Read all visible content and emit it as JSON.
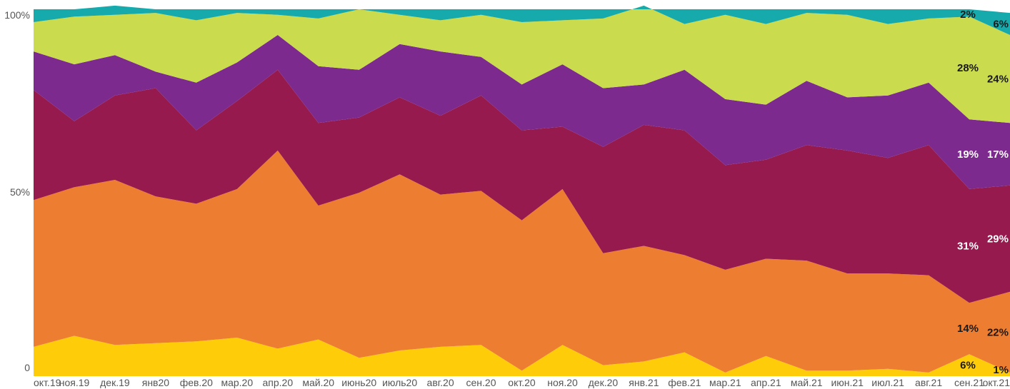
{
  "chart_data": {
    "type": "area",
    "stacked": true,
    "normalized": true,
    "x": [
      "окт.19",
      "ноя.19",
      "дек.19",
      "янв20",
      "фев.20",
      "мар.20",
      "апр.20",
      "май.20",
      "июнь20",
      "июль20",
      "авг.20",
      "сен.20",
      "окт.20",
      "ноя.20",
      "дек.20",
      "янв.21",
      "фев.21",
      "мар.21",
      "апр.21",
      "май.21",
      "июн.21",
      "июл.21",
      "авг.21",
      "сен.21",
      "окт.21"
    ],
    "y_ticks": [
      "0",
      "50%",
      "100%"
    ],
    "ylim": [
      0,
      100
    ],
    "grid": false,
    "legend": "none",
    "series": [
      {
        "color": "#FFCC0A",
        "values": [
          8,
          11,
          8.5,
          9,
          9.5,
          10.5,
          7.5,
          10,
          5,
          7,
          8,
          8.5,
          1.5,
          8.5,
          3,
          4,
          6.5,
          1,
          5.5,
          1.5,
          1.5,
          2,
          1,
          6,
          1
        ]
      },
      {
        "color": "#ED7D31",
        "values": [
          40,
          40.5,
          45,
          40,
          37.5,
          40.5,
          54,
          36.5,
          45,
          48,
          41.5,
          42,
          41,
          42.5,
          30.5,
          31.5,
          26.5,
          28,
          26.5,
          30,
          26.5,
          26,
          26.5,
          14,
          22
        ]
      },
      {
        "color": "#961A4D",
        "values": [
          30,
          18,
          23,
          29.5,
          20,
          24,
          22,
          22.5,
          20.5,
          21,
          21.5,
          26,
          24.5,
          17,
          29,
          33,
          34,
          28.5,
          27,
          31.5,
          33.5,
          31.5,
          35.5,
          31,
          29
        ]
      },
      {
        "color": "#7D2A8E",
        "values": [
          10.5,
          15.5,
          11,
          4.5,
          13,
          10.5,
          9.5,
          15.5,
          13,
          14.5,
          17.5,
          10.5,
          12.5,
          17,
          16,
          11,
          16.5,
          18,
          15,
          17.5,
          14.5,
          17,
          17,
          19,
          17
        ]
      },
      {
        "color": "#CADB4D",
        "values": [
          8,
          13,
          11,
          16,
          17,
          13.5,
          5.5,
          13,
          16.5,
          8,
          8.5,
          11.5,
          17,
          12,
          19,
          21.5,
          12.5,
          23,
          22,
          18.5,
          22.5,
          19.5,
          17.5,
          28,
          24
        ]
      },
      {
        "color": "#16AAAD",
        "values": [
          3.5,
          2,
          2.5,
          1,
          3,
          1,
          1.5,
          2.5,
          0,
          1.5,
          3,
          1.5,
          3.5,
          3,
          2.5,
          -1,
          4,
          1.5,
          4,
          1,
          1.5,
          4,
          2.5,
          2,
          6
        ]
      }
    ],
    "data_labels": [
      {
        "series": 0,
        "index": 23,
        "text": "6%",
        "color": "#1a1a1a"
      },
      {
        "series": 0,
        "index": 24,
        "text": "1%",
        "color": "#1a1a1a"
      },
      {
        "series": 1,
        "index": 23,
        "text": "14%",
        "color": "#1a1a1a"
      },
      {
        "series": 1,
        "index": 24,
        "text": "22%",
        "color": "#1a1a1a"
      },
      {
        "series": 2,
        "index": 23,
        "text": "31%",
        "color": "#ffffff"
      },
      {
        "series": 2,
        "index": 24,
        "text": "29%",
        "color": "#ffffff"
      },
      {
        "series": 3,
        "index": 23,
        "text": "19%",
        "color": "#ffffff"
      },
      {
        "series": 3,
        "index": 24,
        "text": "17%",
        "color": "#ffffff"
      },
      {
        "series": 4,
        "index": 23,
        "text": "28%",
        "color": "#1a1a1a"
      },
      {
        "series": 4,
        "index": 24,
        "text": "24%",
        "color": "#1a1a1a"
      },
      {
        "series": 5,
        "index": 23,
        "text": "2%",
        "color": "#1a1a1a"
      },
      {
        "series": 5,
        "index": 24,
        "text": "6%",
        "color": "#1a1a1a"
      }
    ]
  }
}
